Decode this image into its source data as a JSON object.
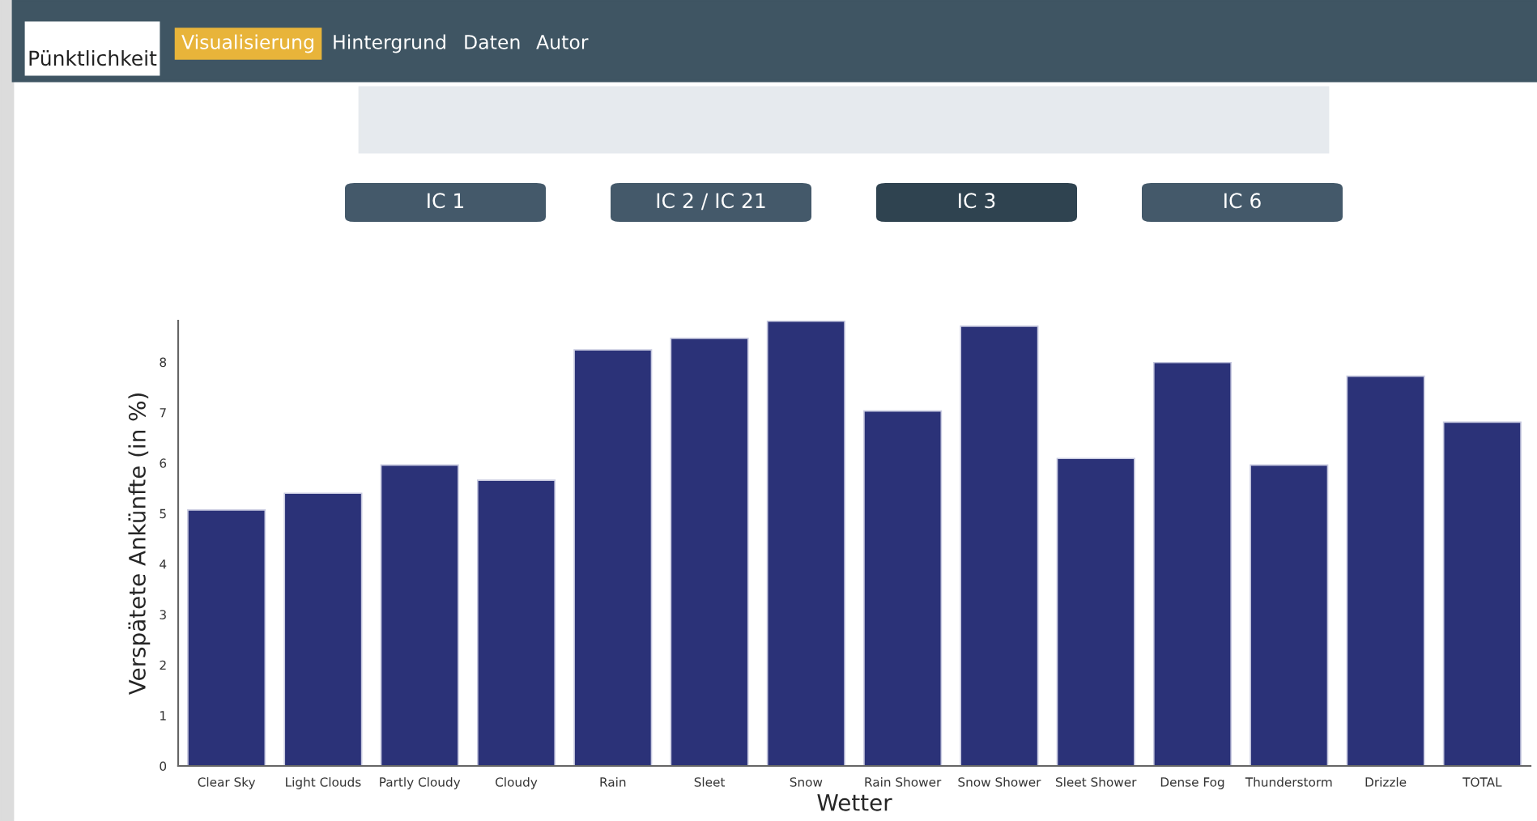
{
  "chart_data": {
    "type": "bar",
    "xlabel": "Wetter",
    "ylabel": "Verspätete Ankünfte (in %)",
    "categories": [
      "Clear Sky",
      "Light Clouds",
      "Partly Cloudy",
      "Cloudy",
      "Rain",
      "Sleet",
      "Snow",
      "Rain Shower",
      "Snow Shower",
      "Sleet Shower",
      "Dense Fog",
      "Thunderstorm",
      "Drizzle",
      "TOTAL"
    ],
    "values": [
      5.07,
      5.4,
      5.96,
      5.66,
      8.24,
      8.47,
      8.81,
      7.03,
      8.71,
      6.09,
      7.99,
      5.96,
      7.72,
      6.81
    ],
    "color": "#2b3278",
    "ylim": [
      0,
      8.82
    ],
    "yticks": [
      0,
      1,
      2,
      3,
      4,
      5,
      6,
      7,
      8
    ],
    "grid": false,
    "legend": false,
    "annotations": [
      "Pünktlichkeit",
      "Visualisierung",
      "Hintergrund",
      "Daten",
      "Autor",
      "IC 1",
      "IC 2 / IC 21",
      "IC 3",
      "IC 6"
    ]
  }
}
